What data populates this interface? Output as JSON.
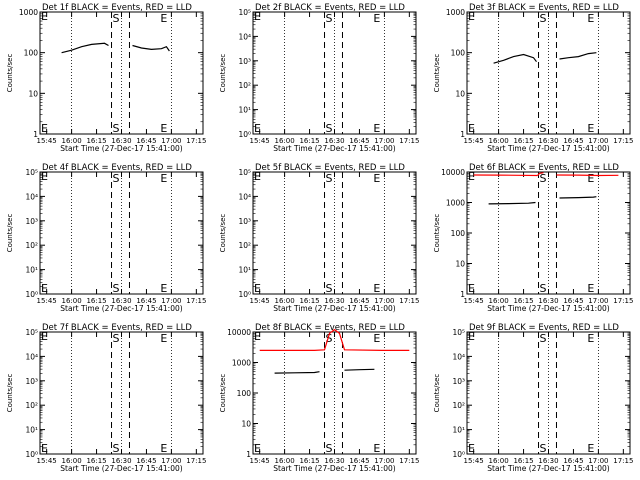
{
  "window": {
    "title": ""
  },
  "colors": {
    "events": "#000000",
    "lld": "#ff0000",
    "background": "#ffffff"
  },
  "chart_data": [
    {
      "type": "line",
      "title": "Det 1f BLACK = Events, RED = LLD",
      "ylabel": "Counts/sec",
      "xlabel": "Start Time (27-Dec-17 15:41:00)",
      "xticks": [
        "15:45",
        "16:00",
        "16:15",
        "16:30",
        "16:45",
        "17:00",
        "17:15"
      ],
      "yticks": [
        "1",
        "10",
        "100",
        "1000"
      ],
      "ylim_exp": [
        0,
        3
      ],
      "markers": [
        {
          "label": "E",
          "pos": "left"
        },
        {
          "label": "S",
          "pos": "start"
        },
        {
          "label": "E",
          "pos": "end"
        }
      ],
      "grid_dotted_minutes": [
        16.0,
        16.5,
        17.0
      ],
      "dashed_minutes": [
        16.4,
        16.58
      ],
      "series": [
        {
          "name": "Events",
          "color": "#000000",
          "x": [
            15.9,
            16.0,
            16.1,
            16.2,
            16.33,
            16.37
          ],
          "y": [
            100,
            115,
            140,
            160,
            170,
            150
          ]
        },
        {
          "name": "Events",
          "color": "#000000",
          "x": [
            16.61,
            16.7,
            16.8,
            16.9,
            16.95,
            16.98
          ],
          "y": [
            150,
            130,
            120,
            125,
            140,
            110
          ]
        }
      ]
    },
    {
      "type": "line",
      "title": "Det 2f BLACK = Events, RED = LLD",
      "ylabel": "Counts/sec",
      "xlabel": "Start Time (27-Dec-17 15:41:00)",
      "xticks": [
        "15:45",
        "16:00",
        "16:15",
        "16:30",
        "16:45",
        "17:00",
        "17:15"
      ],
      "yticks": [
        "10⁰",
        "10¹",
        "10²",
        "10³",
        "10⁴",
        "10⁵"
      ],
      "ylim_exp": [
        0,
        5
      ],
      "markers": [
        {
          "label": "E",
          "pos": "left"
        },
        {
          "label": "S",
          "pos": "start"
        },
        {
          "label": "E",
          "pos": "end"
        }
      ],
      "grid_dotted_minutes": [
        16.0,
        16.5,
        17.0
      ],
      "dashed_minutes": [
        16.4,
        16.58
      ],
      "series": []
    },
    {
      "type": "line",
      "title": "Det 3f BLACK = Events, RED = LLD",
      "ylabel": "Counts/sec",
      "xlabel": "Start Time (27-Dec-17 15:41:00)",
      "xticks": [
        "15:45",
        "16:00",
        "16:15",
        "16:30",
        "16:45",
        "17:00",
        "17:15"
      ],
      "yticks": [
        "1",
        "10",
        "100",
        "1000"
      ],
      "ylim_exp": [
        0,
        3
      ],
      "markers": [
        {
          "label": "E",
          "pos": "left"
        },
        {
          "label": "S",
          "pos": "start"
        },
        {
          "label": "E",
          "pos": "end"
        }
      ],
      "grid_dotted_minutes": [
        16.0,
        16.5,
        17.0
      ],
      "dashed_minutes": [
        16.4,
        16.58
      ],
      "series": [
        {
          "name": "Events",
          "color": "#000000",
          "x": [
            15.95,
            16.05,
            16.15,
            16.25,
            16.35,
            16.38
          ],
          "y": [
            55,
            65,
            80,
            90,
            75,
            60
          ]
        },
        {
          "name": "Events",
          "color": "#000000",
          "x": [
            16.61,
            16.7,
            16.8,
            16.9,
            16.98
          ],
          "y": [
            70,
            75,
            80,
            95,
            100
          ]
        }
      ]
    },
    {
      "type": "line",
      "title": "Det 4f BLACK = Events, RED = LLD",
      "ylabel": "Counts/sec",
      "xlabel": "Start Time (27-Dec-17 15:41:00)",
      "xticks": [
        "15:45",
        "16:00",
        "16:15",
        "16:30",
        "16:45",
        "17:00",
        "17:15"
      ],
      "yticks": [
        "10⁰",
        "10¹",
        "10²",
        "10³",
        "10⁴",
        "10⁵"
      ],
      "ylim_exp": [
        0,
        5
      ],
      "markers": [
        {
          "label": "E",
          "pos": "left"
        },
        {
          "label": "S",
          "pos": "start"
        },
        {
          "label": "E",
          "pos": "end"
        }
      ],
      "grid_dotted_minutes": [
        16.0,
        16.5,
        17.0
      ],
      "dashed_minutes": [
        16.4,
        16.58
      ],
      "series": []
    },
    {
      "type": "line",
      "title": "Det 5f BLACK = Events, RED = LLD",
      "ylabel": "Counts/sec",
      "xlabel": "Start Time (27-Dec-17 15:41:00)",
      "xticks": [
        "15:45",
        "16:00",
        "16:15",
        "16:30",
        "16:45",
        "17:00",
        "17:15"
      ],
      "yticks": [
        "10⁰",
        "10¹",
        "10²",
        "10³",
        "10⁴",
        "10⁵"
      ],
      "ylim_exp": [
        0,
        5
      ],
      "markers": [
        {
          "label": "E",
          "pos": "left"
        },
        {
          "label": "S",
          "pos": "start"
        },
        {
          "label": "E",
          "pos": "end"
        }
      ],
      "grid_dotted_minutes": [
        16.0,
        16.5,
        17.0
      ],
      "dashed_minutes": [
        16.4,
        16.58
      ],
      "series": []
    },
    {
      "type": "line",
      "title": "Det 6f BLACK = Events, RED = LLD",
      "ylabel": "Counts/sec",
      "xlabel": "Start Time (27-Dec-17 15:41:00)",
      "xticks": [
        "15:45",
        "16:00",
        "16:15",
        "16:30",
        "16:45",
        "17:00",
        "17:15"
      ],
      "yticks": [
        "1",
        "10",
        "100",
        "1000",
        "10000"
      ],
      "ylim_exp": [
        0,
        4
      ],
      "markers": [
        {
          "label": "E",
          "pos": "left"
        },
        {
          "label": "S",
          "pos": "start"
        },
        {
          "label": "E",
          "pos": "end"
        }
      ],
      "grid_dotted_minutes": [
        16.0,
        16.5,
        17.0
      ],
      "dashed_minutes": [
        16.4,
        16.58
      ],
      "series": [
        {
          "name": "LLD",
          "color": "#ff0000",
          "x": [
            15.75,
            16.0,
            16.2,
            16.39
          ],
          "y": [
            8000,
            7900,
            7800,
            7700
          ]
        },
        {
          "name": "LLD",
          "color": "#ff0000",
          "x": [
            16.39,
            16.41,
            16.45
          ],
          "y": [
            7700,
            9000,
            9500
          ]
        },
        {
          "name": "LLD",
          "color": "#ff0000",
          "x": [
            16.58,
            16.8,
            17.0,
            17.2
          ],
          "y": [
            8000,
            7900,
            7700,
            7800
          ]
        },
        {
          "name": "Events",
          "color": "#000000",
          "x": [
            15.9,
            16.1,
            16.3,
            16.37
          ],
          "y": [
            900,
            920,
            950,
            1000
          ]
        },
        {
          "name": "Events",
          "color": "#000000",
          "x": [
            16.61,
            16.8,
            16.95,
            16.98
          ],
          "y": [
            1400,
            1450,
            1500,
            1550
          ]
        }
      ]
    },
    {
      "type": "line",
      "title": "Det 7f BLACK = Events, RED = LLD",
      "ylabel": "Counts/sec",
      "xlabel": "Start Time (27-Dec-17 15:41:00)",
      "xticks": [
        "15:45",
        "16:00",
        "16:15",
        "16:30",
        "16:45",
        "17:00",
        "17:15"
      ],
      "yticks": [
        "10⁰",
        "10¹",
        "10²",
        "10³",
        "10⁴",
        "10⁵"
      ],
      "ylim_exp": [
        0,
        5
      ],
      "markers": [
        {
          "label": "E",
          "pos": "left"
        },
        {
          "label": "S",
          "pos": "start"
        },
        {
          "label": "E",
          "pos": "end"
        }
      ],
      "grid_dotted_minutes": [
        16.0,
        16.5,
        17.0
      ],
      "dashed_minutes": [
        16.4,
        16.58
      ],
      "series": []
    },
    {
      "type": "line",
      "title": "Det 8f BLACK = Events, RED = LLD",
      "ylabel": "Counts/sec",
      "xlabel": "Start Time (27-Dec-17 15:41:00)",
      "xticks": [
        "15:45",
        "16:00",
        "16:15",
        "16:30",
        "16:45",
        "17:00",
        "17:15"
      ],
      "yticks": [
        "1",
        "10",
        "100",
        "1000",
        "10000"
      ],
      "ylim_exp": [
        0,
        4
      ],
      "markers": [
        {
          "label": "E",
          "pos": "left"
        },
        {
          "label": "S",
          "pos": "start"
        },
        {
          "label": "E",
          "pos": "end"
        }
      ],
      "grid_dotted_minutes": [
        16.0,
        16.5,
        17.0
      ],
      "dashed_minutes": [
        16.4,
        16.58
      ],
      "series": [
        {
          "name": "LLD",
          "color": "#ff0000",
          "x": [
            15.75,
            16.0,
            16.3,
            16.4,
            16.45,
            16.5,
            16.55,
            16.6,
            17.0,
            17.25
          ],
          "y": [
            2500,
            2500,
            2500,
            2600,
            9000,
            12000,
            9000,
            2600,
            2500,
            2500
          ]
        },
        {
          "name": "Events",
          "color": "#000000",
          "x": [
            15.9,
            16.1,
            16.3,
            16.35
          ],
          "y": [
            450,
            460,
            470,
            500
          ]
        },
        {
          "name": "Events",
          "color": "#000000",
          "x": [
            16.6,
            16.75,
            16.9
          ],
          "y": [
            560,
            580,
            600
          ]
        }
      ]
    },
    {
      "type": "line",
      "title": "Det 9f BLACK = Events, RED = LLD",
      "ylabel": "Counts/sec",
      "xlabel": "Start Time (27-Dec-17 15:41:00)",
      "xticks": [
        "15:45",
        "16:00",
        "16:15",
        "16:30",
        "16:45",
        "17:00",
        "17:15"
      ],
      "yticks": [
        "10⁰",
        "10¹",
        "10²",
        "10³",
        "10⁴",
        "10⁵"
      ],
      "ylim_exp": [
        0,
        5
      ],
      "markers": [
        {
          "label": "E",
          "pos": "left"
        },
        {
          "label": "S",
          "pos": "start"
        },
        {
          "label": "E",
          "pos": "end"
        }
      ],
      "grid_dotted_minutes": [
        16.0,
        16.5,
        17.0
      ],
      "dashed_minutes": [
        16.4,
        16.58
      ],
      "series": []
    }
  ]
}
